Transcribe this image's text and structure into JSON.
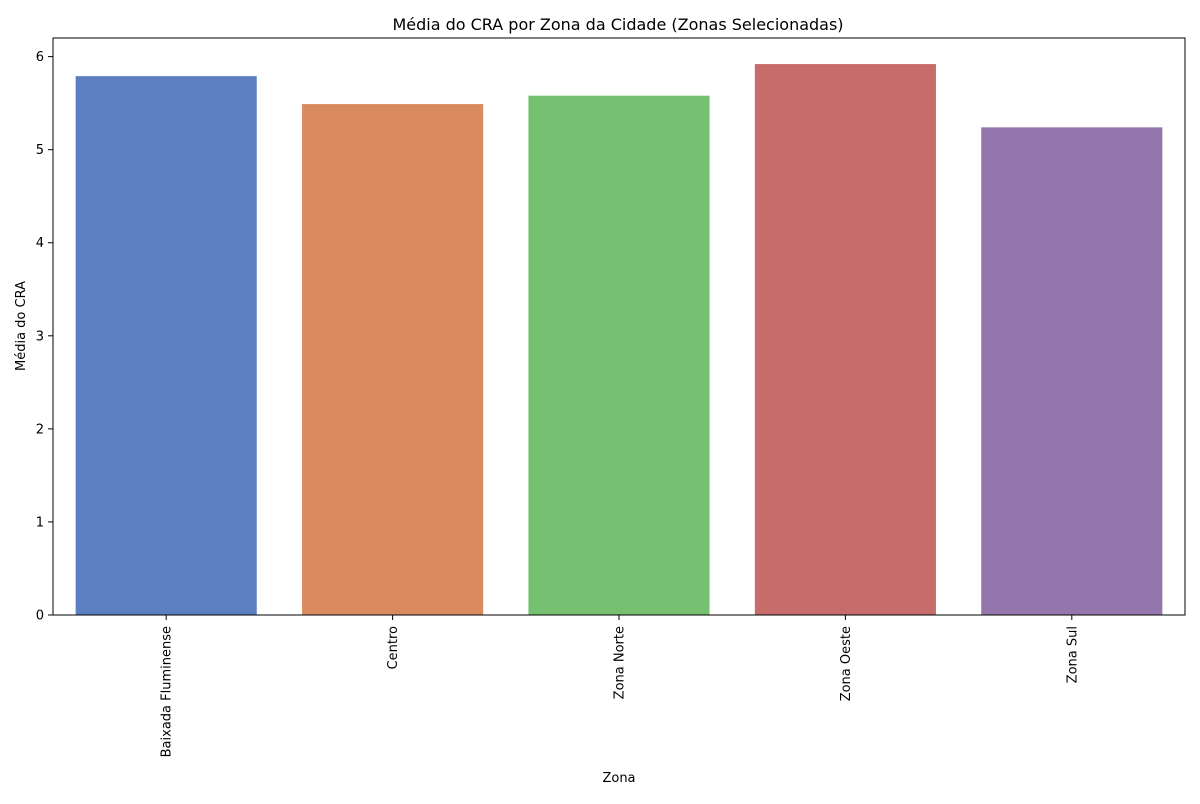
{
  "chart_data": {
    "type": "bar",
    "title": "Média do CRA por Zona da Cidade (Zonas Selecionadas)",
    "xlabel": "Zona",
    "ylabel": "Média do CRA",
    "categories": [
      "Baixada Fluminense",
      "Centro",
      "Zona Norte",
      "Zona Oeste",
      "Zona Sul"
    ],
    "values": [
      5.79,
      5.49,
      5.58,
      5.92,
      5.24
    ],
    "colors": [
      "#5b7fc1",
      "#d98b5f",
      "#76c072",
      "#c66d6c",
      "#9476ad"
    ],
    "ylim": [
      0,
      6.2
    ],
    "yticks": [
      "0",
      "1",
      "2",
      "3",
      "4",
      "5",
      "6"
    ],
    "grid": false,
    "legend": "none"
  }
}
